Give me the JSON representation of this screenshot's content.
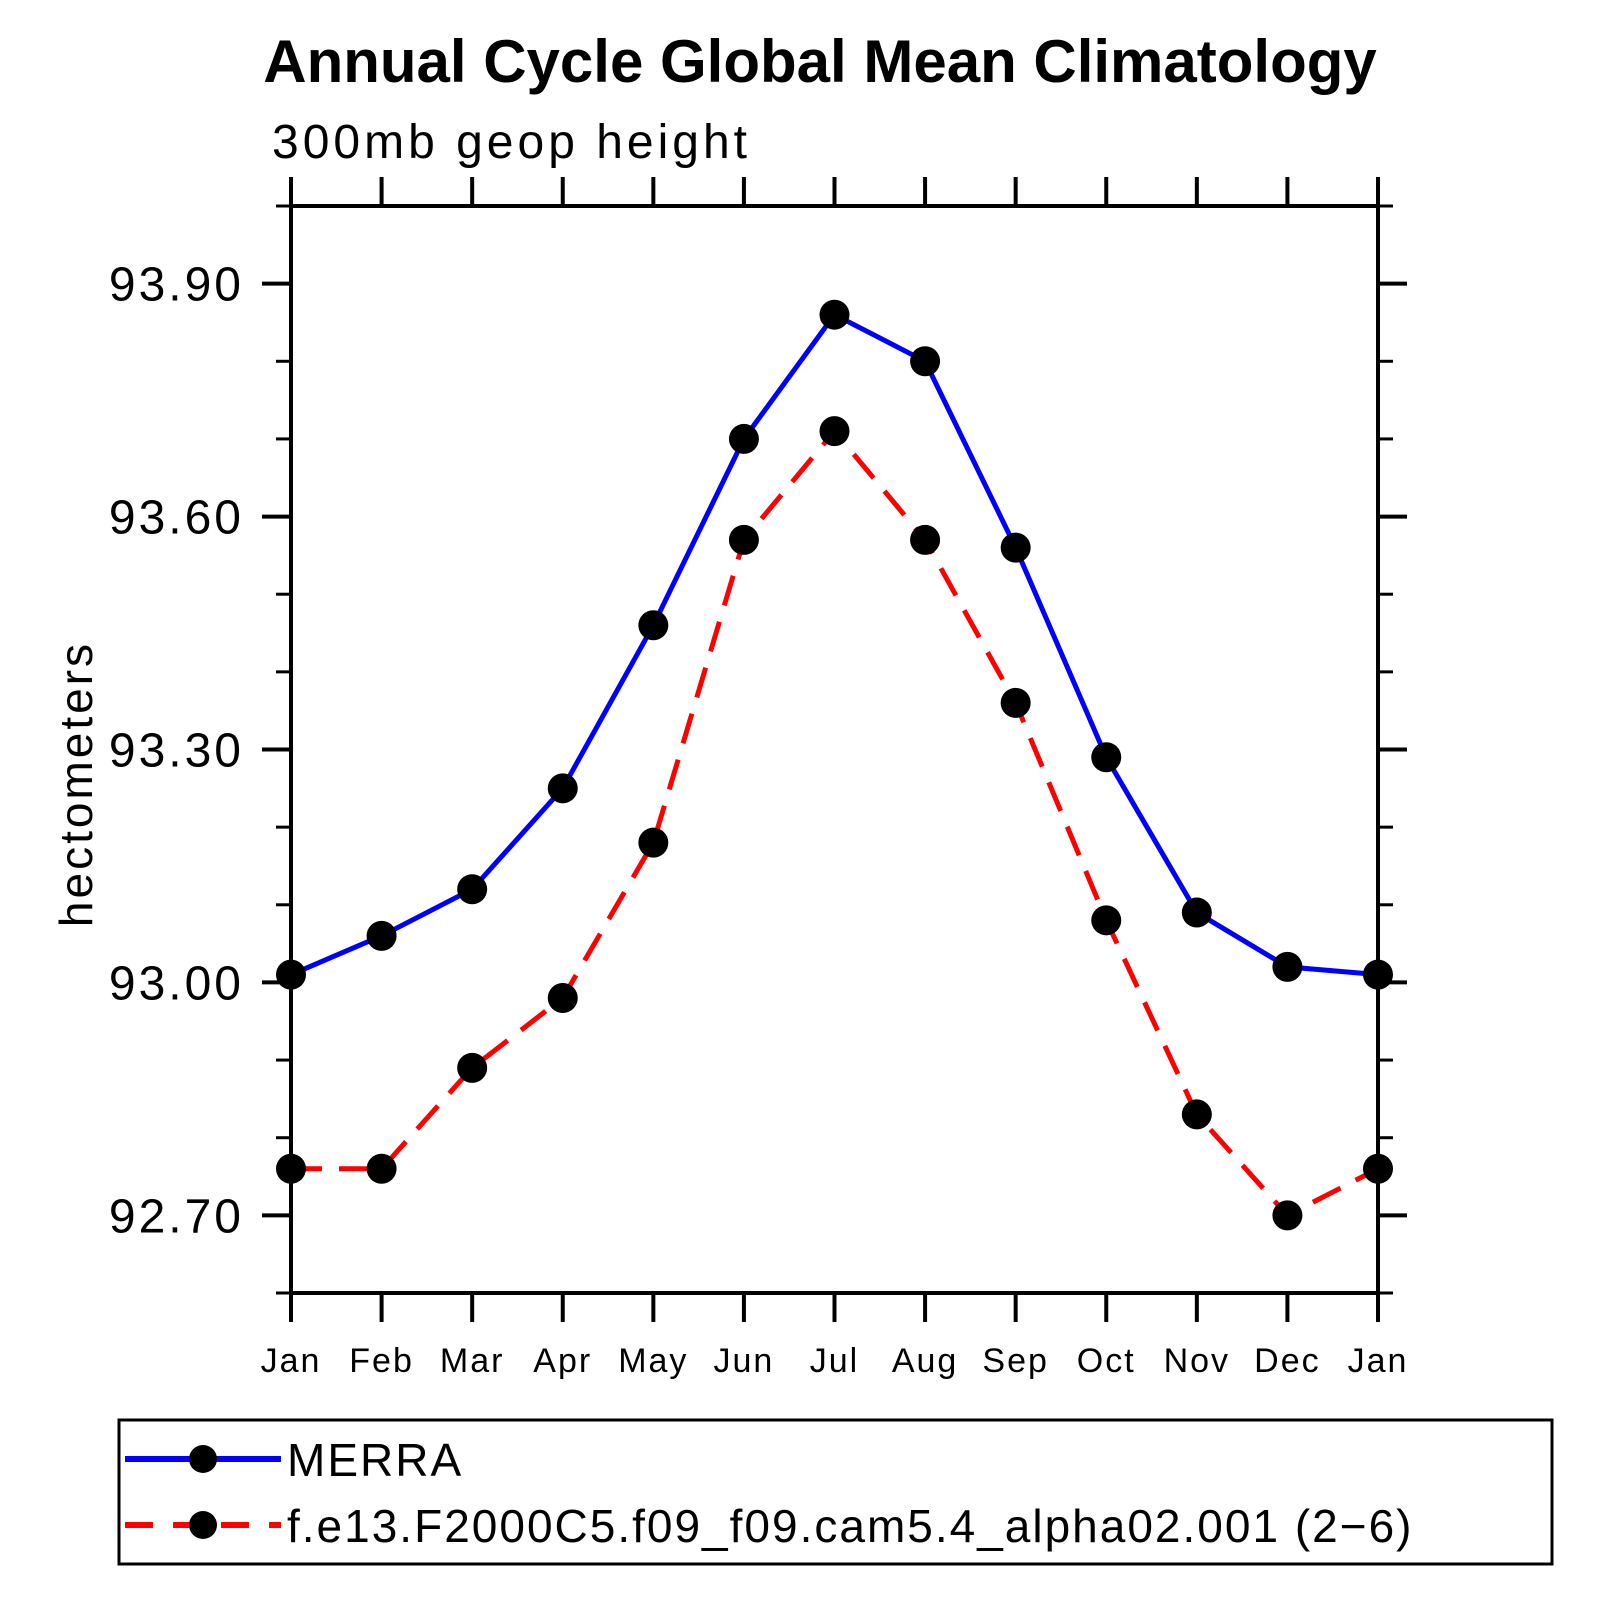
{
  "title": "Annual Cycle Global Mean Climatology",
  "subtitle": "300mb geop height",
  "chart_data": {
    "type": "line",
    "title": "Annual Cycle Global Mean Climatology",
    "subtitle": "300mb geop height",
    "ylabel": "hectometers",
    "categories": [
      "Jan",
      "Feb",
      "Mar",
      "Apr",
      "May",
      "Jun",
      "Jul",
      "Aug",
      "Sep",
      "Oct",
      "Nov",
      "Dec",
      "Jan"
    ],
    "ylim": [
      92.6,
      94.0
    ],
    "yticks_major": [
      {
        "value": 92.7,
        "label": "92.70"
      },
      {
        "value": 93.0,
        "label": "93.00"
      },
      {
        "value": 93.3,
        "label": "93.30"
      },
      {
        "value": 93.6,
        "label": "93.60"
      },
      {
        "value": 93.9,
        "label": "93.90"
      }
    ],
    "ytick_minor_step": 0.1,
    "grid": false,
    "legend_position": "bottom-left-box",
    "frame_color": "#000000",
    "marker_shape": "filled-circle",
    "series": [
      {
        "name": "MERRA",
        "color": "#0000ff",
        "line_style": "solid",
        "marker_color": "#000000",
        "values": [
          93.01,
          93.06,
          93.12,
          93.25,
          93.46,
          93.7,
          93.86,
          93.8,
          93.56,
          93.29,
          93.09,
          93.02,
          93.01
        ]
      },
      {
        "name": "f.e13.F2000C5.f09_f09.cam5.4_alpha02.001 (2−6)",
        "color": "#ff0000",
        "line_style": "dashed",
        "marker_color": "#000000",
        "values": [
          92.76,
          92.76,
          92.89,
          92.98,
          93.18,
          93.57,
          93.71,
          93.57,
          93.36,
          93.08,
          92.83,
          92.7,
          92.76
        ]
      }
    ]
  }
}
